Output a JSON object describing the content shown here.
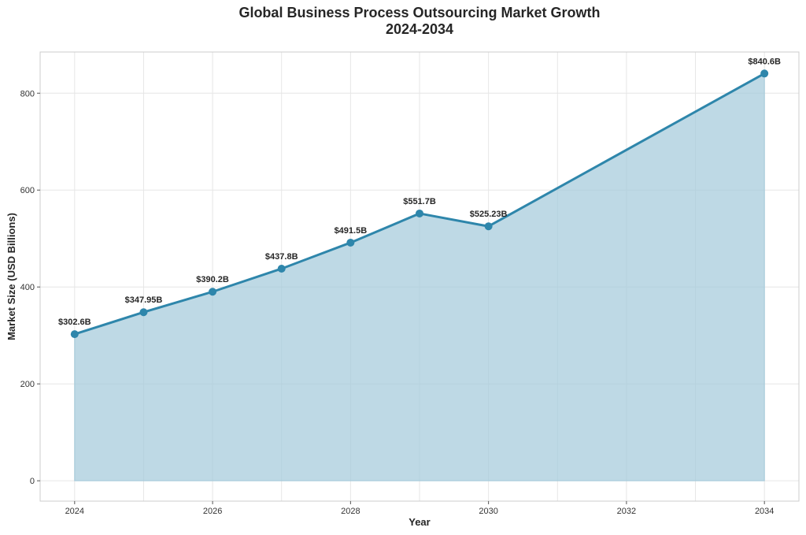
{
  "chart_data": {
    "type": "area",
    "title": "Global Business Process Outsourcing Market Growth",
    "subtitle": "2024-2034",
    "xlabel": "Year",
    "ylabel": "Market Size (USD Billions)",
    "xlim": [
      2023.5,
      2034.5
    ],
    "ylim": [
      -42,
      885
    ],
    "x_ticks": [
      "2024",
      "2026",
      "2028",
      "2030",
      "2032",
      "2034"
    ],
    "y_ticks": [
      "0",
      "200",
      "400",
      "600",
      "800"
    ],
    "grid": true,
    "x": [
      2024,
      2025,
      2026,
      2027,
      2028,
      2029,
      2030,
      2034
    ],
    "values": [
      302.6,
      347.95,
      390.2,
      437.8,
      491.5,
      551.7,
      525.23,
      840.6
    ],
    "data_labels": [
      "$302.6B",
      "$347.95B",
      "$390.2B",
      "$437.8B",
      "$491.5B",
      "$551.7B",
      "$525.23B",
      "$840.6B"
    ],
    "colors": {
      "line": "#2e86ab",
      "fill": "#a3c9da",
      "grid": "#e6e6e6",
      "frame": "#cccccc"
    }
  }
}
